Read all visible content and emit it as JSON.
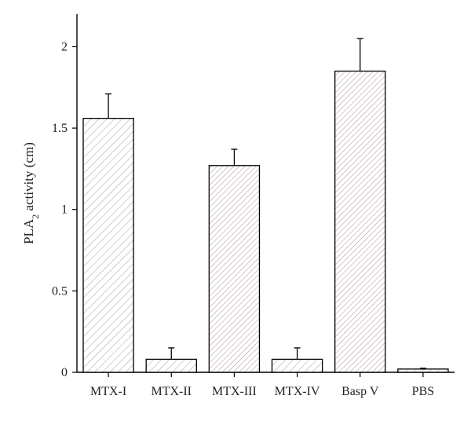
{
  "chart_data": {
    "type": "bar",
    "categories": [
      "MTX-I",
      "MTX-II",
      "MTX-III",
      "MTX-IV",
      "Basp V",
      "PBS"
    ],
    "values": [
      1.56,
      0.08,
      1.27,
      0.08,
      1.85,
      0.02
    ],
    "errors": [
      0.15,
      0.07,
      0.1,
      0.07,
      0.2,
      0.005
    ],
    "ylabel": {
      "main": "PLA",
      "sub": "2",
      "rest": " activity (cm)"
    },
    "ylim": [
      0,
      2.2
    ],
    "yticks": [
      0,
      0.5,
      1,
      1.5,
      2
    ],
    "ytick_labels": [
      "0",
      "0.5",
      "1",
      "1.5",
      "2"
    ],
    "patterns": [
      "diag-light",
      "diag-light",
      "diag-dense",
      "diag-light",
      "diag-dense",
      "diag-light"
    ],
    "grid": false,
    "legend": "none",
    "colors": {
      "bar_edge": "#000000",
      "hatch": "#9a9a9a",
      "hatch_alt": "#c8a0a0",
      "axis": "#000000"
    }
  }
}
